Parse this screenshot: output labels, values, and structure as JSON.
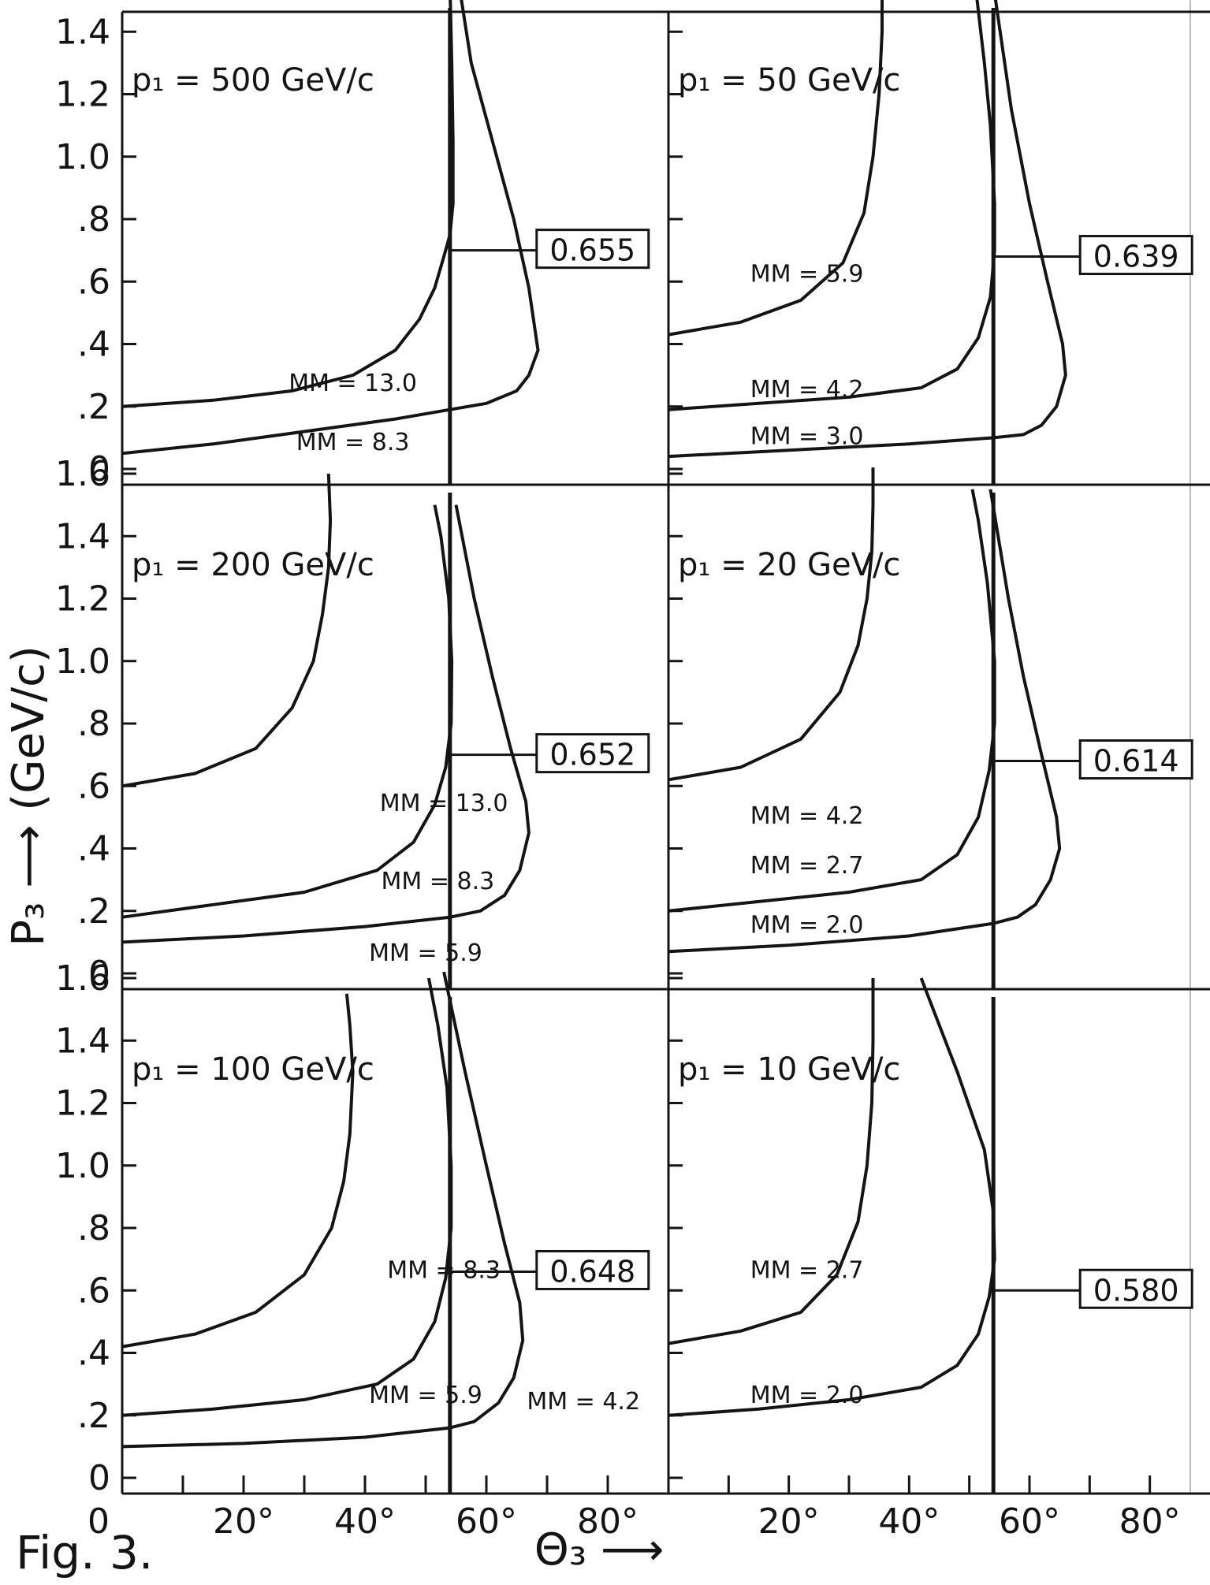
{
  "figure": {
    "label": "Fig. 3.",
    "ylabel": "P₃ ⟶ (GeV/c)",
    "xlabel": "Θ₃ ⟶",
    "ink_color": "#141414",
    "background": "#ffffff"
  },
  "y_ticks_top": [
    "0",
    ".2",
    ".4",
    ".6",
    ".8",
    "1.0",
    "1.2",
    "1.4"
  ],
  "y_ticks": [
    "0",
    ".2",
    ".4",
    ".6",
    ".8",
    "1.0",
    "1.2",
    "1.4",
    "1.6"
  ],
  "x_ticks": [
    "0",
    "20°",
    "40°",
    "60°",
    "80°",
    "20°",
    "40°",
    "60°",
    "80°"
  ],
  "chart_data": [
    {
      "type": "line",
      "title": "p₁ = 500 GeV/c",
      "xlabel": "Θ₃",
      "ylabel": "P₃ (GeV/c)",
      "xlim": [
        0,
        90
      ],
      "ylim": [
        0,
        1.6
      ],
      "marker_theta": 54,
      "marker_box": "0.655",
      "marker_p": 0.7,
      "series": [
        {
          "name": "MM = 13.0",
          "x": [
            0,
            15,
            28,
            38,
            45,
            49,
            51.5,
            53,
            54,
            54.5,
            54.5,
            54.3,
            54
          ],
          "y": [
            0.2,
            0.22,
            0.25,
            0.3,
            0.38,
            0.48,
            0.58,
            0.68,
            0.75,
            0.85,
            1.05,
            1.3,
            1.55
          ]
        },
        {
          "name": "MM = 8.3",
          "x": [
            0,
            15,
            30,
            45,
            54,
            60,
            65,
            67,
            68.5,
            67,
            64.5,
            61,
            57.5,
            55.5
          ],
          "y": [
            0.05,
            0.08,
            0.12,
            0.16,
            0.19,
            0.21,
            0.25,
            0.3,
            0.38,
            0.58,
            0.8,
            1.05,
            1.3,
            1.55
          ]
        }
      ]
    },
    {
      "type": "line",
      "title": "p₁ = 50 GeV/c",
      "xlabel": "Θ₃",
      "ylabel": "P₃ (GeV/c)",
      "xlim": [
        0,
        90
      ],
      "ylim": [
        0,
        1.6
      ],
      "marker_theta": 54,
      "marker_box": "0.639",
      "marker_p": 0.68,
      "series": [
        {
          "name": "MM = 5.9",
          "x": [
            0,
            12,
            22,
            29,
            32.5,
            34,
            35,
            35.5,
            35.5
          ],
          "y": [
            0.43,
            0.47,
            0.54,
            0.66,
            0.82,
            1.0,
            1.2,
            1.4,
            1.55
          ]
        },
        {
          "name": "MM = 4.2",
          "x": [
            0,
            15,
            30,
            42,
            48,
            51.5,
            53.5,
            54.2,
            54.2,
            53.5,
            52.5,
            51
          ],
          "y": [
            0.19,
            0.21,
            0.23,
            0.26,
            0.32,
            0.42,
            0.55,
            0.7,
            0.85,
            1.1,
            1.3,
            1.55
          ]
        },
        {
          "name": "MM = 3.0",
          "x": [
            0,
            20,
            40,
            54,
            59,
            62,
            64.5,
            66,
            65.5,
            63,
            60,
            57,
            54
          ],
          "y": [
            0.04,
            0.06,
            0.08,
            0.1,
            0.11,
            0.14,
            0.2,
            0.3,
            0.4,
            0.6,
            0.85,
            1.15,
            1.55
          ]
        }
      ]
    },
    {
      "type": "line",
      "title": "p₁ = 200 GeV/c",
      "xlabel": "Θ₃",
      "ylabel": "P₃ (GeV/c)",
      "xlim": [
        0,
        90
      ],
      "ylim": [
        0,
        1.6
      ],
      "marker_theta": 54,
      "marker_box": "0.652",
      "marker_p": 0.7,
      "series": [
        {
          "name": "MM = 13.0",
          "x": [
            0,
            12,
            22,
            28,
            31.5,
            33,
            34,
            34.3,
            34
          ],
          "y": [
            0.6,
            0.64,
            0.72,
            0.85,
            1.0,
            1.15,
            1.3,
            1.45,
            1.6
          ]
        },
        {
          "name": "MM = 8.3",
          "x": [
            0,
            15,
            30,
            42,
            48,
            51.5,
            53.3,
            54.2,
            54.3,
            53.8,
            52.5,
            51.5
          ],
          "y": [
            0.18,
            0.22,
            0.26,
            0.33,
            0.42,
            0.54,
            0.66,
            0.8,
            1.0,
            1.2,
            1.4,
            1.5
          ]
        },
        {
          "name": "MM = 5.9",
          "x": [
            0,
            20,
            40,
            54,
            59,
            63,
            65.5,
            67,
            66.5,
            64,
            61,
            58,
            55
          ],
          "y": [
            0.1,
            0.12,
            0.15,
            0.18,
            0.2,
            0.25,
            0.33,
            0.45,
            0.55,
            0.72,
            0.95,
            1.2,
            1.5
          ]
        }
      ]
    },
    {
      "type": "line",
      "title": "p₁ = 20 GeV/c",
      "xlabel": "Θ₃",
      "ylabel": "P₃ (GeV/c)",
      "xlim": [
        0,
        90
      ],
      "ylim": [
        0,
        1.6
      ],
      "marker_theta": 54,
      "marker_box": "0.614",
      "marker_p": 0.68,
      "series": [
        {
          "name": "MM = 4.2",
          "x": [
            0,
            12,
            22,
            28.5,
            31.5,
            33,
            33.8,
            34,
            34
          ],
          "y": [
            0.62,
            0.66,
            0.75,
            0.9,
            1.05,
            1.2,
            1.35,
            1.5,
            1.62
          ]
        },
        {
          "name": "MM = 2.7",
          "x": [
            0,
            15,
            30,
            42,
            48,
            51.5,
            53.3,
            54.2,
            54.2,
            53,
            51.5,
            50.5
          ],
          "y": [
            0.2,
            0.23,
            0.26,
            0.3,
            0.38,
            0.5,
            0.65,
            0.8,
            1.0,
            1.25,
            1.45,
            1.55
          ]
        },
        {
          "name": "MM = 2.0",
          "x": [
            0,
            20,
            40,
            54,
            58,
            61,
            63.5,
            65,
            64.5,
            62,
            59,
            56.5,
            53.5
          ],
          "y": [
            0.07,
            0.09,
            0.12,
            0.16,
            0.18,
            0.22,
            0.3,
            0.4,
            0.5,
            0.7,
            0.95,
            1.2,
            1.55
          ]
        }
      ]
    },
    {
      "type": "line",
      "title": "p₁ = 100 GeV/c",
      "xlabel": "Θ₃",
      "ylabel": "P₃ (GeV/c)",
      "xlim": [
        0,
        90
      ],
      "ylim": [
        0,
        1.6
      ],
      "marker_theta": 54,
      "marker_box": "0.648",
      "marker_p": 0.66,
      "series": [
        {
          "name": "MM = 8.3",
          "x": [
            0,
            12,
            22,
            30,
            34.5,
            36.5,
            37.5,
            38,
            37.5,
            37
          ],
          "y": [
            0.42,
            0.46,
            0.53,
            0.65,
            0.8,
            0.95,
            1.1,
            1.3,
            1.45,
            1.55
          ]
        },
        {
          "name": "MM = 5.9",
          "x": [
            0,
            15,
            30,
            42,
            48,
            51.5,
            53.3,
            54.2,
            54.2,
            53.5,
            52,
            50.5
          ],
          "y": [
            0.2,
            0.22,
            0.25,
            0.3,
            0.38,
            0.5,
            0.64,
            0.8,
            1.0,
            1.25,
            1.45,
            1.6
          ]
        },
        {
          "name": "MM = 4.2",
          "x": [
            0,
            20,
            40,
            54,
            58,
            62,
            64.5,
            66,
            65.5,
            63,
            60,
            56.5,
            53
          ],
          "y": [
            0.1,
            0.11,
            0.13,
            0.16,
            0.18,
            0.24,
            0.32,
            0.44,
            0.56,
            0.75,
            1.0,
            1.3,
            1.62
          ]
        }
      ]
    },
    {
      "type": "line",
      "title": "p₁ = 10 GeV/c",
      "xlabel": "Θ₃",
      "ylabel": "P₃ (GeV/c)",
      "xlim": [
        0,
        90
      ],
      "ylim": [
        0,
        1.6
      ],
      "marker_theta": 54,
      "marker_box": "0.580",
      "marker_p": 0.6,
      "series": [
        {
          "name": "MM = 2.7",
          "x": [
            0,
            12,
            22,
            28,
            31.5,
            33,
            33.8,
            34,
            34
          ],
          "y": [
            0.43,
            0.47,
            0.53,
            0.65,
            0.82,
            1.0,
            1.2,
            1.4,
            1.6
          ]
        },
        {
          "name": "MM = 2.0",
          "x": [
            0,
            15,
            30,
            42,
            48,
            51.5,
            53.3,
            54.2,
            54,
            52.5,
            48,
            42
          ],
          "y": [
            0.2,
            0.22,
            0.25,
            0.29,
            0.36,
            0.46,
            0.58,
            0.7,
            0.85,
            1.05,
            1.3,
            1.6
          ]
        }
      ]
    }
  ]
}
